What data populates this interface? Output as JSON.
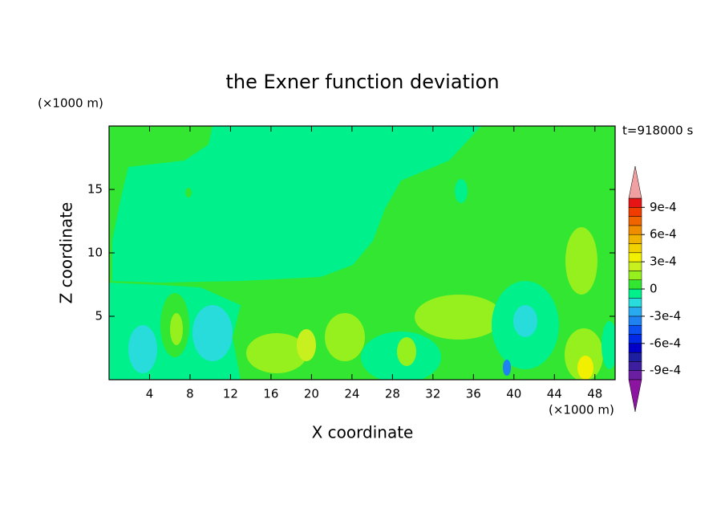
{
  "chart_data": {
    "type": "contour",
    "title": "the Exner function deviation",
    "x_label": "X coordinate",
    "y_label": "Z coordinate",
    "x_unit": "(×1000 m)",
    "y_unit": "(×1000 m)",
    "annotation": "t=918000 s",
    "xlim": [
      0,
      50
    ],
    "ylim": [
      0,
      20
    ],
    "xticks": [
      4,
      8,
      12,
      16,
      20,
      24,
      28,
      32,
      36,
      40,
      44,
      48
    ],
    "yticks": [
      5,
      10,
      15
    ],
    "colorbar": {
      "levels": [
        -0.001,
        -0.0009,
        -0.0008,
        -0.0007,
        -0.0006,
        -0.0005,
        -0.0004,
        -0.0003,
        -0.0002,
        -0.0001,
        0,
        0.0001,
        0.0002,
        0.0003,
        0.0004,
        0.0005,
        0.0006,
        0.0007,
        0.0008,
        0.0009,
        0.001
      ],
      "colors": [
        "#6a1fa0",
        "#3c1e9e",
        "#1e1ea0",
        "#0000c8",
        "#0028e6",
        "#0a50f0",
        "#1e82f0",
        "#28aaf0",
        "#28dcdc",
        "#00f08c",
        "#32e632",
        "#96f01e",
        "#c8f01e",
        "#f0f000",
        "#f0d200",
        "#f0b400",
        "#f08c00",
        "#f06400",
        "#f03c00",
        "#e61414"
      ],
      "extend_colors": [
        "#8c14a0",
        "#f0a0a0"
      ],
      "ticks": [
        {
          "value": -0.0009,
          "label": "-9e-4"
        },
        {
          "value": -0.0006,
          "label": "-6e-4"
        },
        {
          "value": -0.0003,
          "label": "-3e-4"
        },
        0,
        {
          "value": 0.0003,
          "label": "3e-4"
        },
        {
          "value": 0.0006,
          "label": "6e-4"
        },
        {
          "value": 0.0009,
          "label": "9e-4"
        }
      ]
    }
  }
}
